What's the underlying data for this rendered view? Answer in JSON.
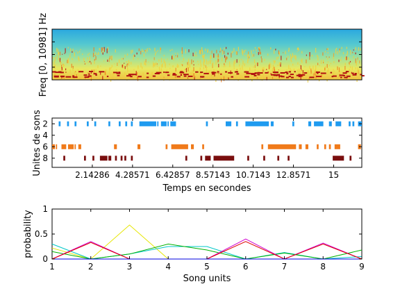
{
  "chart_data": [
    {
      "type": "heatmap",
      "ylabel": "Freq [0, 10981] Hz",
      "xlim": [
        0,
        16.5
      ],
      "colormap": "jet",
      "description_levels": "spectrogram intensity"
    },
    {
      "type": "scatter",
      "ylabel": "Unites de sons",
      "xlabel": "Temps en secondes",
      "xlim": [
        0,
        16.5
      ],
      "ylim": [
        1,
        9.6
      ],
      "yticks": [
        "2",
        "4",
        "6",
        "8"
      ],
      "xticks": [
        "2.14286",
        "4.28571",
        "6.42857",
        "8.57143",
        "10.7143",
        "12.8571",
        "15"
      ],
      "xtick_values": [
        2.14286,
        4.28571,
        6.42857,
        8.57143,
        10.7143,
        12.8571,
        15
      ],
      "series": [
        {
          "unit": 2,
          "color": "#1f9bf0",
          "segments": [
            [
              0.35,
              0.45
            ],
            [
              0.8,
              0.9
            ],
            [
              1.2,
              1.3
            ],
            [
              1.85,
              1.95
            ],
            [
              2.25,
              2.35
            ],
            [
              3.0,
              3.1
            ],
            [
              3.55,
              3.65
            ],
            [
              3.9,
              4.0
            ],
            [
              4.2,
              4.3
            ],
            [
              4.65,
              5.55
            ],
            [
              5.6,
              5.65
            ],
            [
              5.8,
              6.1
            ],
            [
              6.15,
              6.2
            ],
            [
              6.3,
              6.6
            ],
            [
              8.2,
              8.3
            ],
            [
              9.25,
              9.55
            ],
            [
              9.8,
              9.9
            ],
            [
              10.3,
              11.55
            ],
            [
              11.65,
              11.8
            ],
            [
              12.8,
              12.9
            ],
            [
              13.65,
              13.8
            ],
            [
              13.95,
              14.45
            ],
            [
              14.75,
              14.9
            ],
            [
              15.1,
              15.4
            ],
            [
              15.8,
              15.9
            ],
            [
              16.0,
              16.1
            ],
            [
              16.3,
              16.5
            ]
          ]
        },
        {
          "unit": 6,
          "color": "#f07a1a",
          "segments": [
            [
              0.0,
              0.15
            ],
            [
              0.2,
              0.25
            ],
            [
              0.5,
              0.75
            ],
            [
              0.85,
              1.15
            ],
            [
              1.2,
              1.25
            ],
            [
              1.4,
              1.55
            ],
            [
              3.3,
              3.45
            ],
            [
              4.55,
              4.7
            ],
            [
              6.05,
              6.15
            ],
            [
              6.35,
              7.25
            ],
            [
              7.4,
              7.55
            ],
            [
              8.0,
              8.1
            ],
            [
              11.15,
              11.25
            ],
            [
              11.5,
              13.0
            ],
            [
              13.15,
              13.3
            ],
            [
              13.5,
              13.65
            ],
            [
              14.1,
              14.2
            ],
            [
              14.5,
              14.6
            ],
            [
              14.75,
              14.85
            ],
            [
              15.05,
              15.35
            ],
            [
              16.3,
              16.45
            ]
          ]
        },
        {
          "unit": 8,
          "color": "#7a0e0e",
          "segments": [
            [
              0.6,
              0.7
            ],
            [
              1.7,
              1.8
            ],
            [
              2.15,
              2.25
            ],
            [
              2.55,
              2.95
            ],
            [
              3.0,
              3.15
            ],
            [
              3.35,
              3.45
            ],
            [
              3.65,
              3.75
            ],
            [
              3.85,
              3.95
            ],
            [
              4.2,
              4.3
            ],
            [
              7.1,
              7.2
            ],
            [
              7.9,
              8.0
            ],
            [
              8.15,
              8.45
            ],
            [
              8.6,
              9.7
            ],
            [
              10.4,
              10.5
            ],
            [
              11.25,
              11.35
            ],
            [
              12.0,
              12.1
            ],
            [
              12.55,
              12.65
            ],
            [
              14.95,
              15.55
            ],
            [
              15.85,
              15.95
            ]
          ]
        }
      ]
    },
    {
      "type": "line",
      "ylabel": "probability",
      "xlabel": "Song units",
      "x": [
        1,
        2,
        3,
        4,
        5,
        6,
        7,
        8,
        9
      ],
      "xlim": [
        1,
        9
      ],
      "ylim": [
        0,
        1
      ],
      "yticks": [
        "0",
        "0.5",
        "1"
      ],
      "ytick_values": [
        0,
        0.5,
        1
      ],
      "xticks": [
        "1",
        "2",
        "3",
        "4",
        "5",
        "6",
        "7",
        "8",
        "9"
      ],
      "series": [
        {
          "color": "#e6e600",
          "values": [
            0.22,
            0.0,
            0.68,
            0.0,
            0.0,
            0.0,
            0.0,
            0.0,
            0.0
          ]
        },
        {
          "color": "#00c8c8",
          "values": [
            0.3,
            0.0,
            0.1,
            0.25,
            0.25,
            0.0,
            0.13,
            0.0,
            0.05
          ]
        },
        {
          "color": "#00b000",
          "values": [
            0.15,
            0.0,
            0.1,
            0.3,
            0.18,
            0.0,
            0.12,
            0.0,
            0.18
          ]
        },
        {
          "color": "#d000d0",
          "values": [
            0.0,
            0.35,
            0.0,
            0.0,
            0.0,
            0.4,
            0.0,
            0.32,
            0.0
          ]
        },
        {
          "color": "#e00000",
          "values": [
            0.0,
            0.33,
            0.0,
            0.0,
            0.0,
            0.35,
            0.0,
            0.3,
            0.0
          ]
        },
        {
          "color": "#0000e0",
          "values": [
            0.0,
            0.0,
            0.0,
            0.0,
            0.0,
            0.0,
            0.0,
            0.0,
            0.0
          ]
        }
      ]
    }
  ]
}
